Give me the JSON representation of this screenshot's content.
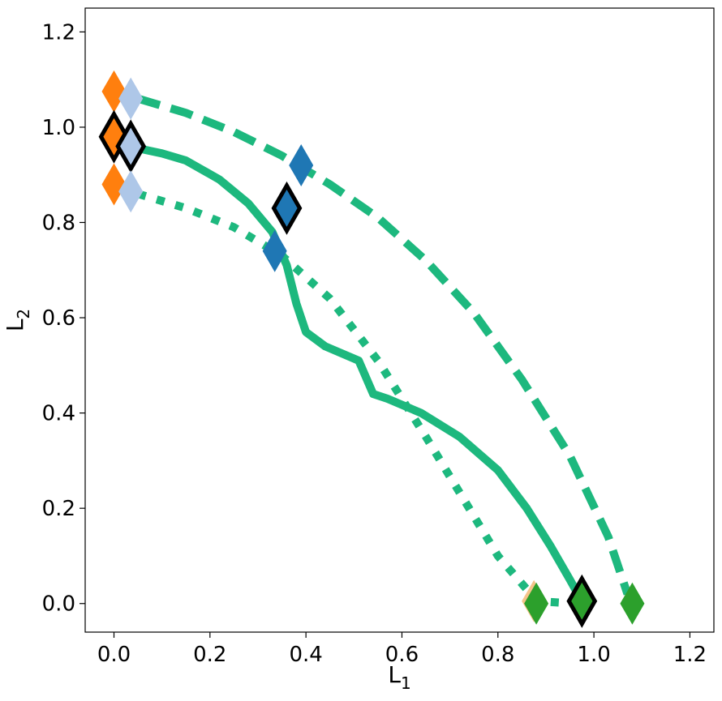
{
  "chart_data": {
    "type": "line",
    "title": "",
    "xlabel": "L",
    "xlabel_sub": "1",
    "ylabel": "L",
    "ylabel_sub": "2",
    "xlim": [
      -0.06,
      1.25
    ],
    "ylim": [
      -0.06,
      1.25
    ],
    "xticks": [
      0.0,
      0.2,
      0.4,
      0.6,
      0.8,
      1.0,
      1.2
    ],
    "yticks": [
      0.0,
      0.2,
      0.4,
      0.6,
      0.8,
      1.0,
      1.2
    ],
    "grid": false,
    "curve_color": "#1db87e",
    "series": [
      {
        "style": "dashed",
        "points": [
          [
            0.05,
            1.06
          ],
          [
            0.15,
            1.03
          ],
          [
            0.25,
            0.99
          ],
          [
            0.35,
            0.94
          ],
          [
            0.45,
            0.88
          ],
          [
            0.55,
            0.81
          ],
          [
            0.65,
            0.72
          ],
          [
            0.75,
            0.61
          ],
          [
            0.85,
            0.47
          ],
          [
            0.95,
            0.31
          ],
          [
            1.03,
            0.14
          ],
          [
            1.07,
            0.02
          ]
        ]
      },
      {
        "style": "solid",
        "points": [
          [
            0.03,
            0.96
          ],
          [
            0.1,
            0.945
          ],
          [
            0.15,
            0.93
          ],
          [
            0.22,
            0.89
          ],
          [
            0.28,
            0.84
          ],
          [
            0.33,
            0.78
          ],
          [
            0.36,
            0.71
          ],
          [
            0.38,
            0.63
          ],
          [
            0.4,
            0.57
          ],
          [
            0.44,
            0.54
          ],
          [
            0.51,
            0.51
          ],
          [
            0.54,
            0.44
          ],
          [
            0.57,
            0.43
          ],
          [
            0.64,
            0.4
          ],
          [
            0.72,
            0.35
          ],
          [
            0.8,
            0.28
          ],
          [
            0.86,
            0.2
          ],
          [
            0.91,
            0.12
          ],
          [
            0.95,
            0.05
          ],
          [
            0.975,
            0.005
          ]
        ]
      },
      {
        "style": "dotted",
        "points": [
          [
            0.05,
            0.86
          ],
          [
            0.15,
            0.83
          ],
          [
            0.25,
            0.79
          ],
          [
            0.35,
            0.73
          ],
          [
            0.45,
            0.64
          ],
          [
            0.55,
            0.51
          ],
          [
            0.65,
            0.35
          ],
          [
            0.74,
            0.2
          ],
          [
            0.8,
            0.1
          ],
          [
            0.86,
            0.03
          ],
          [
            0.88,
            0.005
          ],
          [
            0.96,
            0.0
          ]
        ]
      }
    ],
    "markers": [
      {
        "x": 0.0,
        "y": 1.075,
        "color": "#ff7f0e",
        "outlined": false
      },
      {
        "x": 0.035,
        "y": 1.06,
        "color": "#aec7e8",
        "outlined": false
      },
      {
        "x": 0.0,
        "y": 0.98,
        "color": "#ff7f0e",
        "outlined": true
      },
      {
        "x": 0.035,
        "y": 0.96,
        "color": "#aec7e8",
        "outlined": true
      },
      {
        "x": 0.0,
        "y": 0.88,
        "color": "#ff7f0e",
        "outlined": false
      },
      {
        "x": 0.035,
        "y": 0.865,
        "color": "#aec7e8",
        "outlined": false
      },
      {
        "x": 0.39,
        "y": 0.92,
        "color": "#1f77b4",
        "outlined": false
      },
      {
        "x": 0.36,
        "y": 0.83,
        "color": "#1f77b4",
        "outlined": true
      },
      {
        "x": 0.335,
        "y": 0.74,
        "color": "#1f77b4",
        "outlined": false
      },
      {
        "x": 0.875,
        "y": 0.005,
        "color": "#f5c48a",
        "outlined": false
      },
      {
        "x": 0.88,
        "y": 0.0,
        "color": "#2ca02c",
        "outlined": false
      },
      {
        "x": 0.975,
        "y": 0.005,
        "color": "#2ca02c",
        "outlined": true
      },
      {
        "x": 1.08,
        "y": 0.0,
        "color": "#2ca02c",
        "outlined": false
      }
    ]
  }
}
